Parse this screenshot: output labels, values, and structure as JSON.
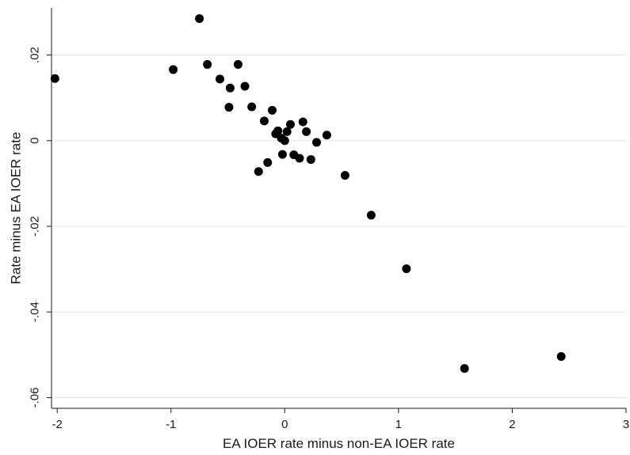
{
  "chart_data": {
    "type": "scatter",
    "title": "",
    "xlabel": "EA IOER rate minus non-EA IOER rate",
    "ylabel": "Rate minus EA IOER rate",
    "xlim": [
      -2.05,
      3.0
    ],
    "ylim": [
      -0.0625,
      0.031
    ],
    "x_ticks": [
      -2,
      -1,
      0,
      1,
      2,
      3
    ],
    "x_tick_labels": [
      "-2",
      "-1",
      "0",
      "1",
      "2",
      "3"
    ],
    "y_ticks": [
      0.02,
      0,
      -0.02,
      -0.04,
      -0.06
    ],
    "y_tick_labels": [
      ".02",
      "0",
      "-.02",
      "-.04",
      "-.06"
    ],
    "grid": true,
    "legend": "none",
    "point_color": "#000000",
    "points": [
      {
        "x": -2.02,
        "y": 0.0145
      },
      {
        "x": -0.98,
        "y": 0.0166
      },
      {
        "x": -0.75,
        "y": 0.0285
      },
      {
        "x": -0.68,
        "y": 0.0178
      },
      {
        "x": -0.57,
        "y": 0.0144
      },
      {
        "x": -0.48,
        "y": 0.0123
      },
      {
        "x": -0.41,
        "y": 0.0178
      },
      {
        "x": -0.35,
        "y": 0.0127
      },
      {
        "x": -0.49,
        "y": 0.0078
      },
      {
        "x": -0.29,
        "y": 0.0079
      },
      {
        "x": -0.18,
        "y": 0.0046
      },
      {
        "x": -0.11,
        "y": 0.0071
      },
      {
        "x": -0.08,
        "y": 0.0016
      },
      {
        "x": -0.06,
        "y": 0.0023
      },
      {
        "x": -0.03,
        "y": 0.0006
      },
      {
        "x": 0.0,
        "y": 0.0
      },
      {
        "x": 0.02,
        "y": 0.0021
      },
      {
        "x": 0.05,
        "y": 0.0038
      },
      {
        "x": 0.16,
        "y": 0.0044
      },
      {
        "x": 0.19,
        "y": 0.0021
      },
      {
        "x": 0.28,
        "y": -0.0004
      },
      {
        "x": 0.37,
        "y": 0.0013
      },
      {
        "x": -0.02,
        "y": -0.0032
      },
      {
        "x": 0.08,
        "y": -0.0033
      },
      {
        "x": 0.13,
        "y": -0.0041
      },
      {
        "x": 0.23,
        "y": -0.0044
      },
      {
        "x": -0.15,
        "y": -0.0051
      },
      {
        "x": -0.23,
        "y": -0.0072
      },
      {
        "x": 0.53,
        "y": -0.0081
      },
      {
        "x": 0.76,
        "y": -0.0174
      },
      {
        "x": 1.07,
        "y": -0.0299
      },
      {
        "x": 1.58,
        "y": -0.0532
      },
      {
        "x": 2.43,
        "y": -0.0504
      }
    ]
  }
}
